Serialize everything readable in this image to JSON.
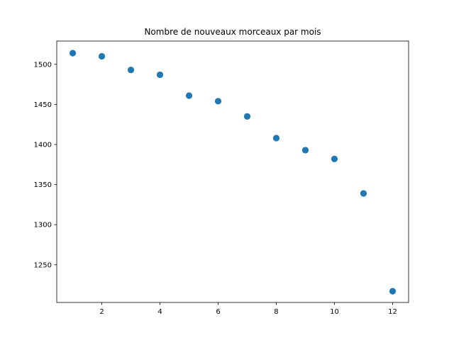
{
  "chart_data": {
    "type": "scatter",
    "title": "Nombre de nouveaux morceaux par mois",
    "xlabel": "",
    "ylabel": "",
    "xlim": [
      0.45,
      12.55
    ],
    "ylim": [
      1203,
      1529
    ],
    "xticks": [
      2,
      4,
      6,
      8,
      10,
      12
    ],
    "yticks": [
      1250,
      1300,
      1350,
      1400,
      1450,
      1500
    ],
    "grid": false,
    "legend": "none",
    "point_color": "#1f77b4",
    "series": [
      {
        "x": [
          1,
          2,
          3,
          4,
          5,
          6,
          7,
          8,
          9,
          10,
          11,
          12
        ],
        "y": [
          1514,
          1510,
          1493,
          1487,
          1461,
          1454,
          1435,
          1408,
          1393,
          1382,
          1339,
          1217
        ]
      }
    ]
  }
}
